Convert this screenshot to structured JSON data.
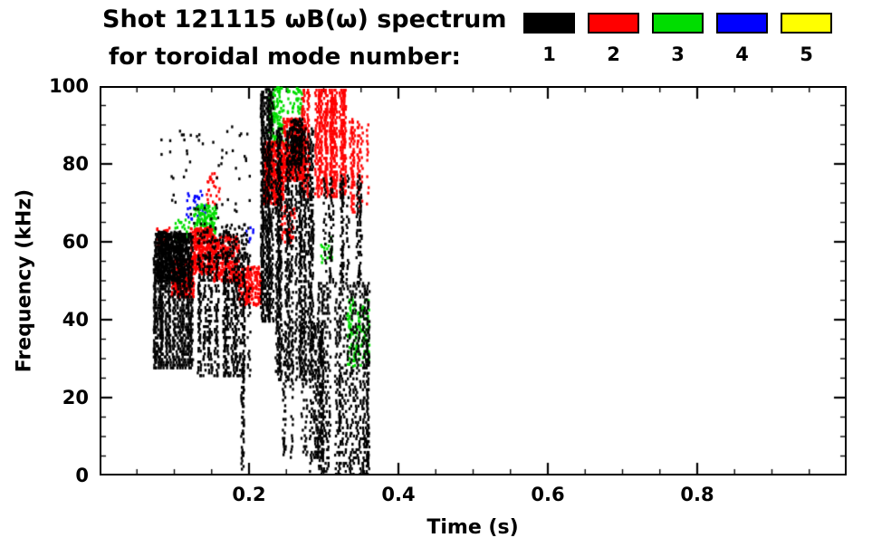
{
  "chart_data": {
    "type": "scatter",
    "title": "Shot 121115 ωB(ω) spectrum",
    "subtitle": "for toroidal mode number:",
    "xlabel": "Time (s)",
    "ylabel": "Frequency (kHz)",
    "xlim": [
      0,
      1.0
    ],
    "ylim": [
      0,
      100
    ],
    "xticks": [
      {
        "v": 0.2,
        "label": "0.2"
      },
      {
        "v": 0.4,
        "label": "0.4"
      },
      {
        "v": 0.6,
        "label": "0.6"
      },
      {
        "v": 0.8,
        "label": "0.8"
      }
    ],
    "yticks": [
      {
        "v": 0,
        "label": "0"
      },
      {
        "v": 20,
        "label": "20"
      },
      {
        "v": 40,
        "label": "40"
      },
      {
        "v": 60,
        "label": "60"
      },
      {
        "v": 80,
        "label": "80"
      },
      {
        "v": 100,
        "label": "100"
      }
    ],
    "minor_x_step": 0.05,
    "minor_y_step": 5,
    "grid": false,
    "legend_position": "top-right",
    "legend": [
      {
        "mode": "1",
        "color": "#000000"
      },
      {
        "mode": "2",
        "color": "#ff0000"
      },
      {
        "mode": "3",
        "color": "#00dd00"
      },
      {
        "mode": "4",
        "color": "#0000ff"
      },
      {
        "mode": "5",
        "color": "#ffff00"
      }
    ],
    "clusters": [
      {
        "mode": "4",
        "style": "scatter",
        "t": [
          0.115,
          0.14
        ],
        "f": [
          66,
          74
        ],
        "n": 30
      },
      {
        "mode": "4",
        "style": "scatter",
        "t": [
          0.195,
          0.205
        ],
        "f": [
          60,
          64
        ],
        "n": 8
      },
      {
        "mode": "3",
        "style": "scatter",
        "t": [
          0.1,
          0.12
        ],
        "f": [
          60,
          66
        ],
        "n": 25
      },
      {
        "mode": "3",
        "style": "scatter",
        "t": [
          0.125,
          0.155
        ],
        "f": [
          62,
          70
        ],
        "n": 130
      },
      {
        "mode": "3",
        "style": "scatter",
        "t": [
          0.225,
          0.245
        ],
        "f": [
          85,
          100
        ],
        "n": 130
      },
      {
        "mode": "3",
        "style": "scatter",
        "t": [
          0.25,
          0.27
        ],
        "f": [
          93,
          100
        ],
        "n": 40
      },
      {
        "mode": "3",
        "style": "scatter",
        "t": [
          0.295,
          0.31
        ],
        "f": [
          55,
          62
        ],
        "n": 20
      },
      {
        "mode": "3",
        "style": "scatter",
        "t": [
          0.33,
          0.36
        ],
        "f": [
          28,
          46
        ],
        "n": 130
      },
      {
        "mode": "2",
        "style": "scatter",
        "t": [
          0.075,
          0.095
        ],
        "f": [
          58,
          64
        ],
        "n": 40
      },
      {
        "mode": "2",
        "style": "scatter",
        "t": [
          0.095,
          0.125
        ],
        "f": [
          46,
          56
        ],
        "n": 260
      },
      {
        "mode": "2",
        "style": "scatter",
        "t": [
          0.12,
          0.15
        ],
        "f": [
          52,
          64
        ],
        "n": 360
      },
      {
        "mode": "2",
        "style": "scatter",
        "t": [
          0.15,
          0.185
        ],
        "f": [
          50,
          62
        ],
        "n": 300
      },
      {
        "mode": "2",
        "style": "scatter",
        "t": [
          0.14,
          0.16
        ],
        "f": [
          70,
          78
        ],
        "n": 25
      },
      {
        "mode": "2",
        "style": "scatter",
        "t": [
          0.185,
          0.215
        ],
        "f": [
          44,
          54
        ],
        "n": 200
      },
      {
        "mode": "2",
        "style": "scatter",
        "t": [
          0.218,
          0.245
        ],
        "f": [
          70,
          86
        ],
        "n": 420
      },
      {
        "mode": "2",
        "style": "scatter",
        "t": [
          0.24,
          0.26
        ],
        "f": [
          60,
          70
        ],
        "n": 60
      },
      {
        "mode": "2",
        "style": "scatter",
        "t": [
          0.245,
          0.275
        ],
        "f": [
          76,
          92
        ],
        "n": 480
      },
      {
        "mode": "2",
        "style": "streaks",
        "t": [
          0.27,
          0.33
        ],
        "f": [
          72,
          100
        ],
        "streaks": 24,
        "density": 0.7
      },
      {
        "mode": "2",
        "style": "streaks",
        "t": [
          0.33,
          0.36
        ],
        "f": [
          68,
          92
        ],
        "streaks": 8,
        "density": 0.5
      },
      {
        "mode": "1",
        "style": "streaks",
        "t": [
          0.072,
          0.125
        ],
        "f": [
          28,
          63
        ],
        "streaks": 26,
        "density": 0.75
      },
      {
        "mode": "1",
        "style": "streaks",
        "t": [
          0.125,
          0.2
        ],
        "f": [
          26,
          58
        ],
        "streaks": 30,
        "density": 0.45
      },
      {
        "mode": "1",
        "style": "scatter",
        "t": [
          0.075,
          0.115
        ],
        "f": [
          50,
          63
        ],
        "n": 500
      },
      {
        "mode": "1",
        "style": "scatter",
        "t": [
          0.13,
          0.2
        ],
        "f": [
          55,
          65
        ],
        "n": 120
      },
      {
        "mode": "1",
        "style": "scatter",
        "t": [
          0.08,
          0.2
        ],
        "f": [
          63,
          90
        ],
        "n": 60
      },
      {
        "mode": "1",
        "style": "streaks",
        "t": [
          0.185,
          0.195
        ],
        "f": [
          2,
          28
        ],
        "streaks": 3,
        "density": 0.5
      },
      {
        "mode": "1",
        "style": "streaks",
        "t": [
          0.215,
          0.235
        ],
        "f": [
          40,
          100
        ],
        "streaks": 8,
        "density": 0.8
      },
      {
        "mode": "1",
        "style": "streaks",
        "t": [
          0.235,
          0.285
        ],
        "f": [
          25,
          90
        ],
        "streaks": 18,
        "density": 0.65
      },
      {
        "mode": "1",
        "style": "streaks",
        "t": [
          0.245,
          0.3
        ],
        "f": [
          5,
          40
        ],
        "streaks": 12,
        "density": 0.5
      },
      {
        "mode": "1",
        "style": "streaks",
        "t": [
          0.28,
          0.36
        ],
        "f": [
          0,
          50
        ],
        "streaks": 20,
        "density": 0.55
      },
      {
        "mode": "1",
        "style": "streaks",
        "t": [
          0.3,
          0.35
        ],
        "f": [
          50,
          78
        ],
        "streaks": 10,
        "density": 0.6
      },
      {
        "mode": "1",
        "style": "scatter",
        "t": [
          0.255,
          0.27
        ],
        "f": [
          80,
          92
        ],
        "n": 150
      }
    ]
  }
}
